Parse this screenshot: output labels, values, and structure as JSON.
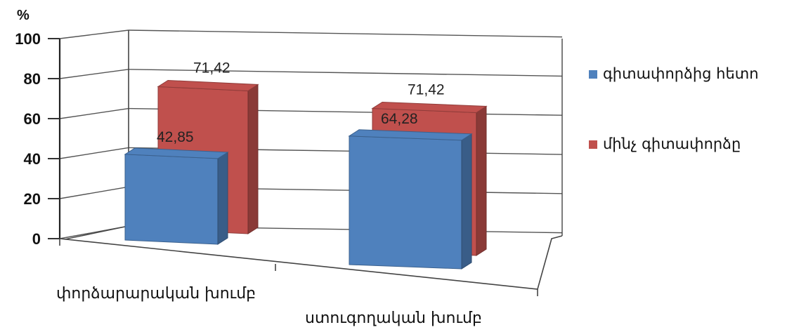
{
  "chart_data": {
    "type": "bar",
    "categories": [
      "փորձարարական խումբ",
      "ստուգողական խումբ"
    ],
    "series": [
      {
        "name": "գիտափորձից հետո",
        "color": "#4f81bd",
        "values": [
          42.85,
          64.28
        ],
        "labels": [
          "42,85",
          "64,28"
        ]
      },
      {
        "name": "մինչ գիտափորձը",
        "color": "#c0504d",
        "values": [
          71.42,
          71.42
        ],
        "labels": [
          "71,42",
          "71,42"
        ]
      }
    ],
    "yaxis": {
      "unit": "%",
      "min": 0,
      "max": 100,
      "ticks": [
        "0",
        "20",
        "40",
        "60",
        "80",
        "100"
      ]
    },
    "grid": true,
    "legend_position": "right",
    "style": "3d-clustered-column"
  }
}
